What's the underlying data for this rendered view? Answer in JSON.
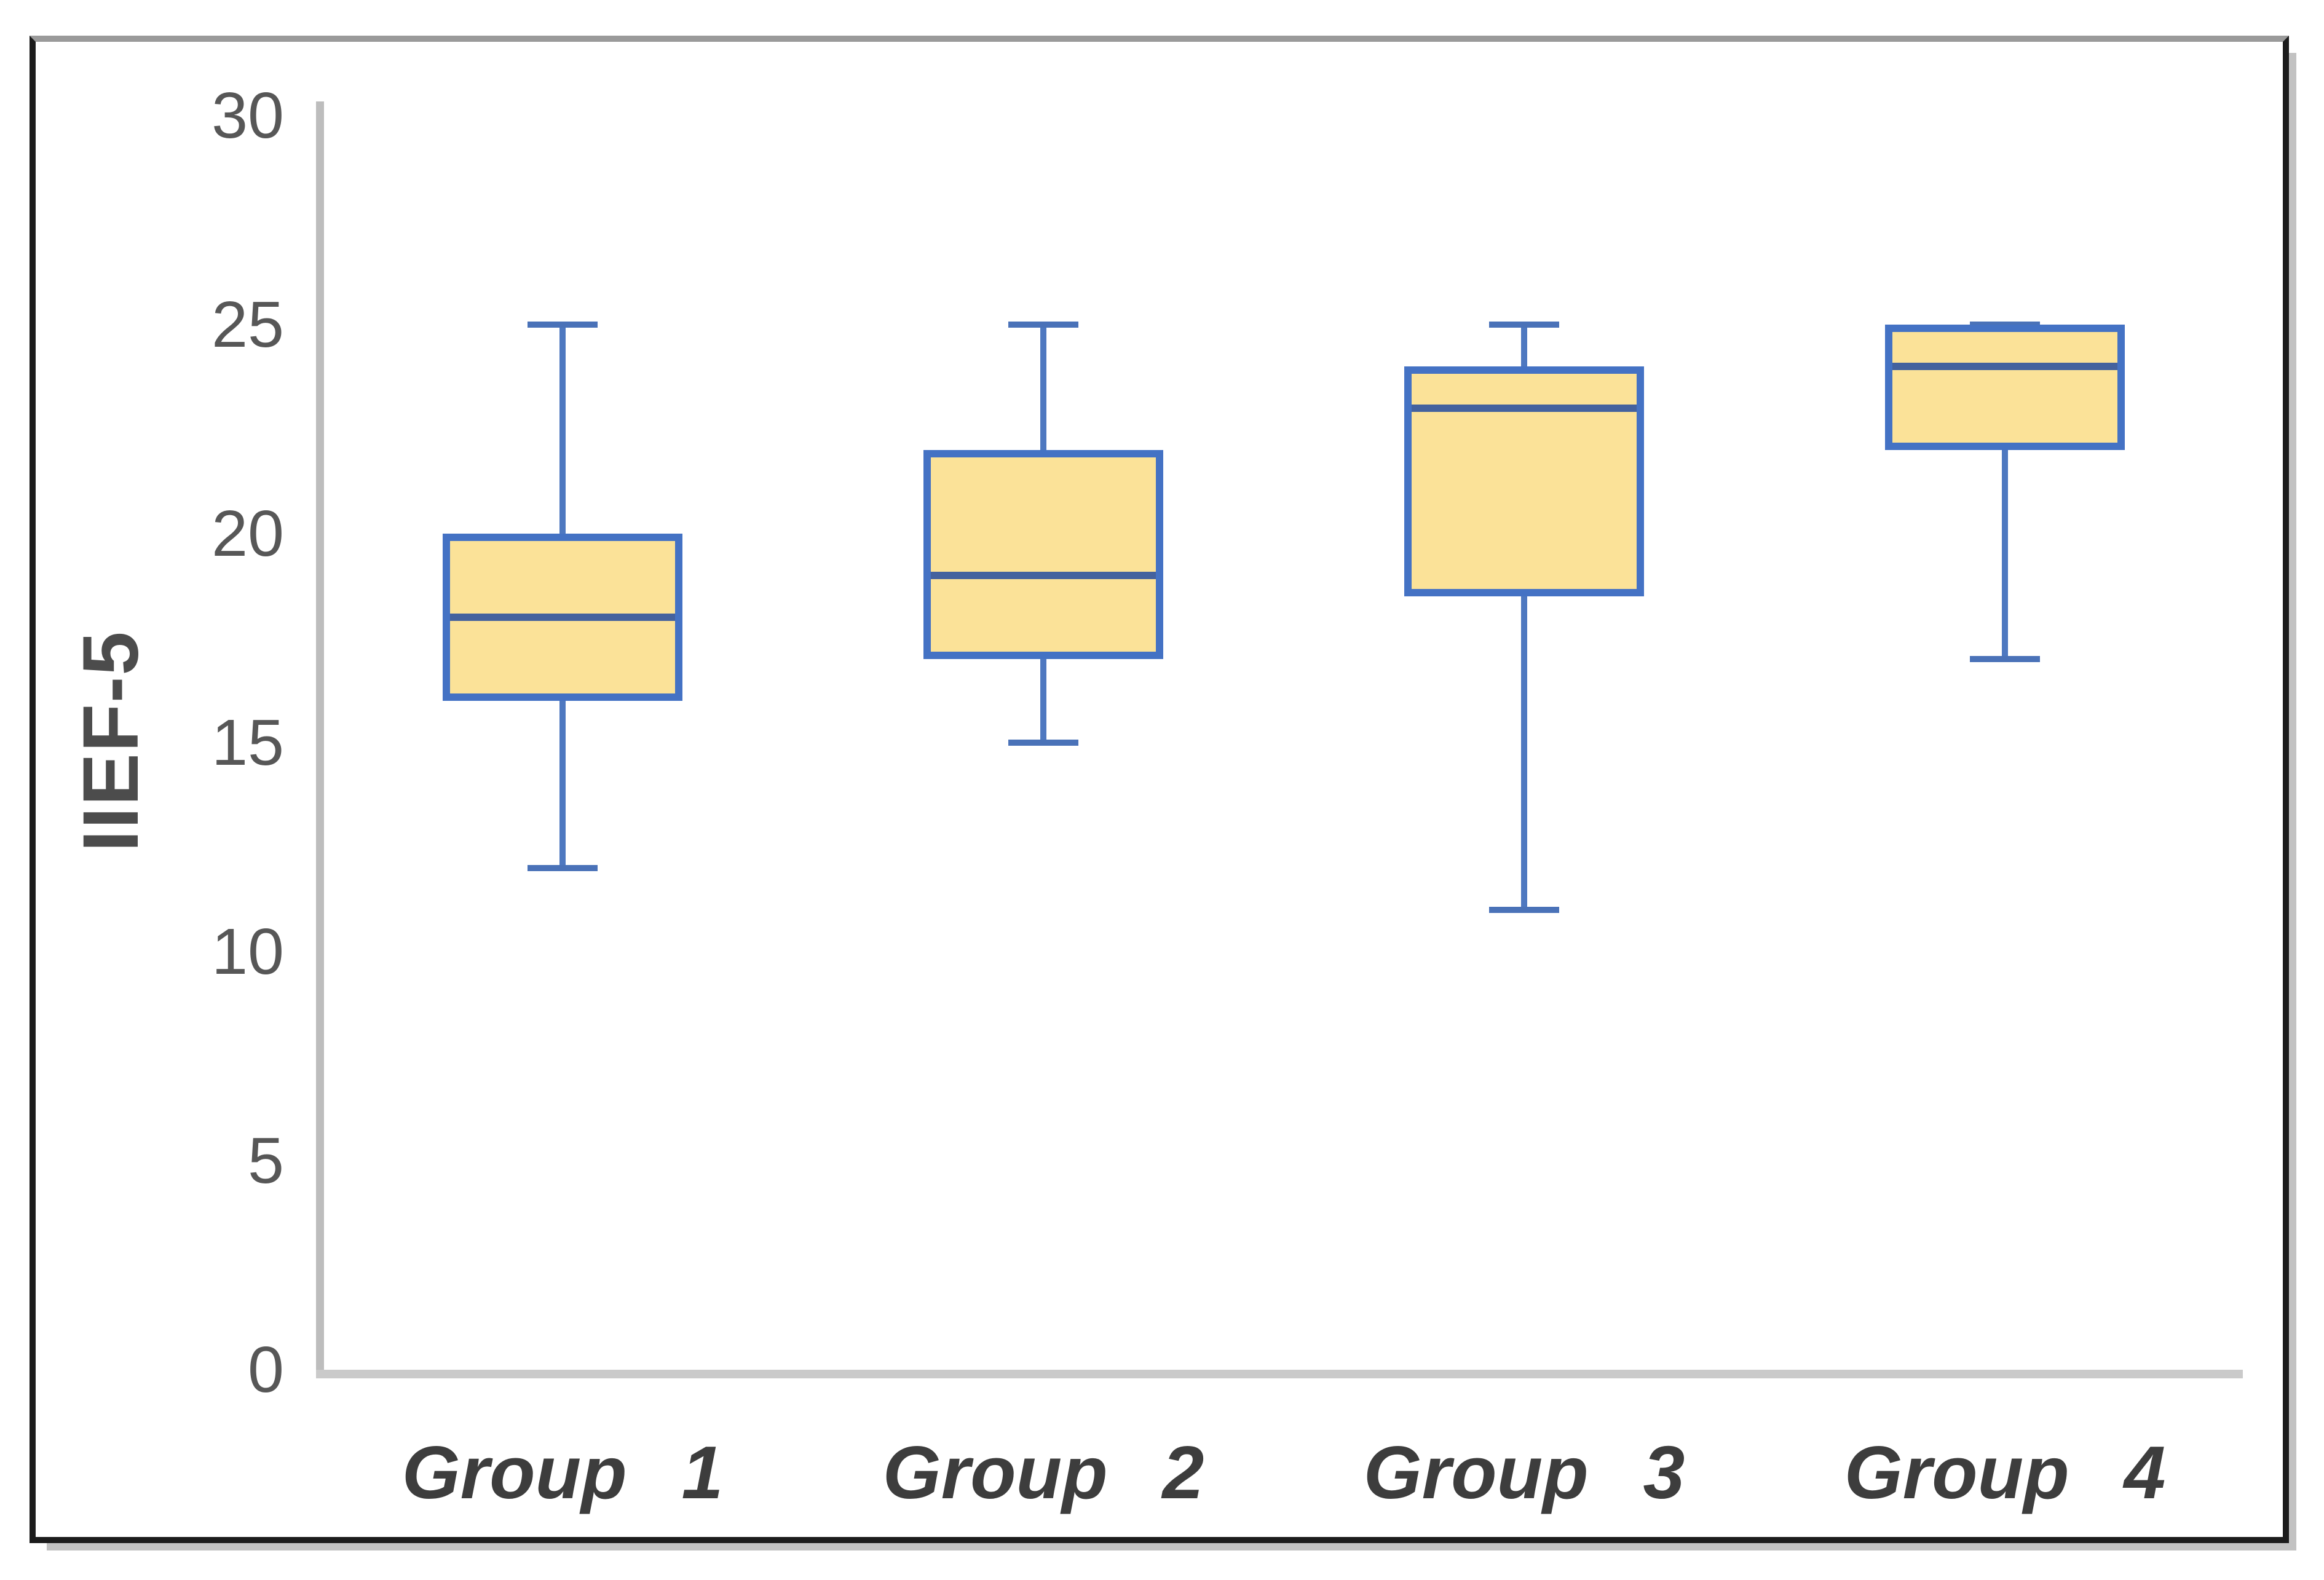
{
  "chart_data": {
    "type": "boxplot",
    "title": "",
    "xlabel": "",
    "ylabel": "IIEF-5",
    "ylim": [
      0,
      30
    ],
    "yticks": [
      0,
      5,
      10,
      15,
      20,
      25,
      30
    ],
    "grid": false,
    "legend_position": "none",
    "categories": [
      "Group 1",
      "Group 2",
      "Group 3",
      "Group 4"
    ],
    "series": [
      {
        "name": "Group 1",
        "min": 12,
        "q1": 16,
        "median": 18,
        "q3": 20,
        "max": 25
      },
      {
        "name": "Group 2",
        "min": 15,
        "q1": 17,
        "median": 19,
        "q3": 22,
        "max": 25
      },
      {
        "name": "Group 3",
        "min": 11,
        "q1": 18.5,
        "median": 23,
        "q3": 24,
        "max": 25
      },
      {
        "name": "Group 4",
        "min": 17,
        "q1": 22,
        "median": 24,
        "q3": 25,
        "max": 25
      }
    ],
    "colors": {
      "box_fill": "#fbe298",
      "box_line": "#4472c4",
      "median_line": "#44629e",
      "axis_line": "#c2c2c2",
      "tick_text": "#575757",
      "category_text": "#3d3d3d",
      "ylabel_text": "#4c4c4c",
      "frame": "#1c1c1c",
      "frame_top": "#9a9a9a",
      "shadow": "#c2c2c2"
    }
  }
}
